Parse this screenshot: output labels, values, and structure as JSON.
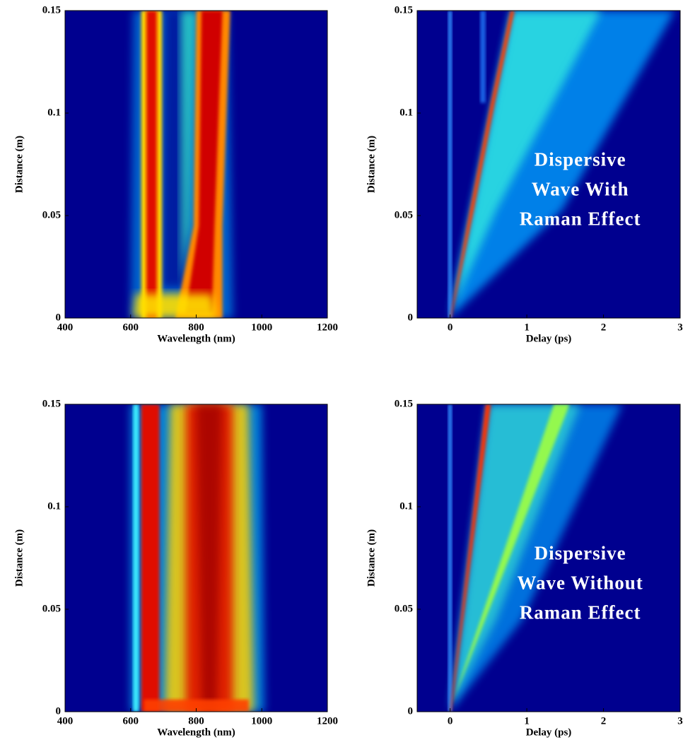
{
  "chart_data": [
    {
      "type": "heatmap",
      "xlabel": "Wavelength (nm)",
      "ylabel": "Distance (m)",
      "xlim": [
        400,
        1200
      ],
      "xticks": [
        400,
        600,
        800,
        1000,
        1200
      ],
      "ylim": [
        0,
        0.15
      ],
      "yticks": [
        0,
        0.05,
        0.1,
        0.15
      ]
    },
    {
      "type": "heatmap",
      "xlabel": "Delay (ps)",
      "ylabel": "Distance (m)",
      "xlim": [
        -0.43,
        3
      ],
      "xticks": [
        0,
        1,
        2,
        3
      ],
      "ylim": [
        0,
        0.15
      ],
      "yticks": [
        0,
        0.05,
        0.1,
        0.15
      ],
      "annotation": [
        "Dispersive",
        "Wave With",
        "Raman Effect"
      ]
    },
    {
      "type": "heatmap",
      "xlabel": "Wavelength (nm)",
      "ylabel": "Distance (m)",
      "xlim": [
        400,
        1200
      ],
      "xticks": [
        400,
        600,
        800,
        1000,
        1200
      ],
      "ylim": [
        0,
        0.15
      ],
      "yticks": [
        0,
        0.05,
        0.1,
        0.15
      ]
    },
    {
      "type": "heatmap",
      "xlabel": "Delay (ps)",
      "ylabel": "Distance (m)",
      "xlim": [
        -0.43,
        3
      ],
      "xticks": [
        0,
        1,
        2,
        3
      ],
      "ylim": [
        0,
        0.15
      ],
      "yticks": [
        0,
        0.05,
        0.1,
        0.15
      ],
      "annotation": [
        "Dispersive",
        "Wave Without",
        "Raman Effect"
      ]
    }
  ]
}
